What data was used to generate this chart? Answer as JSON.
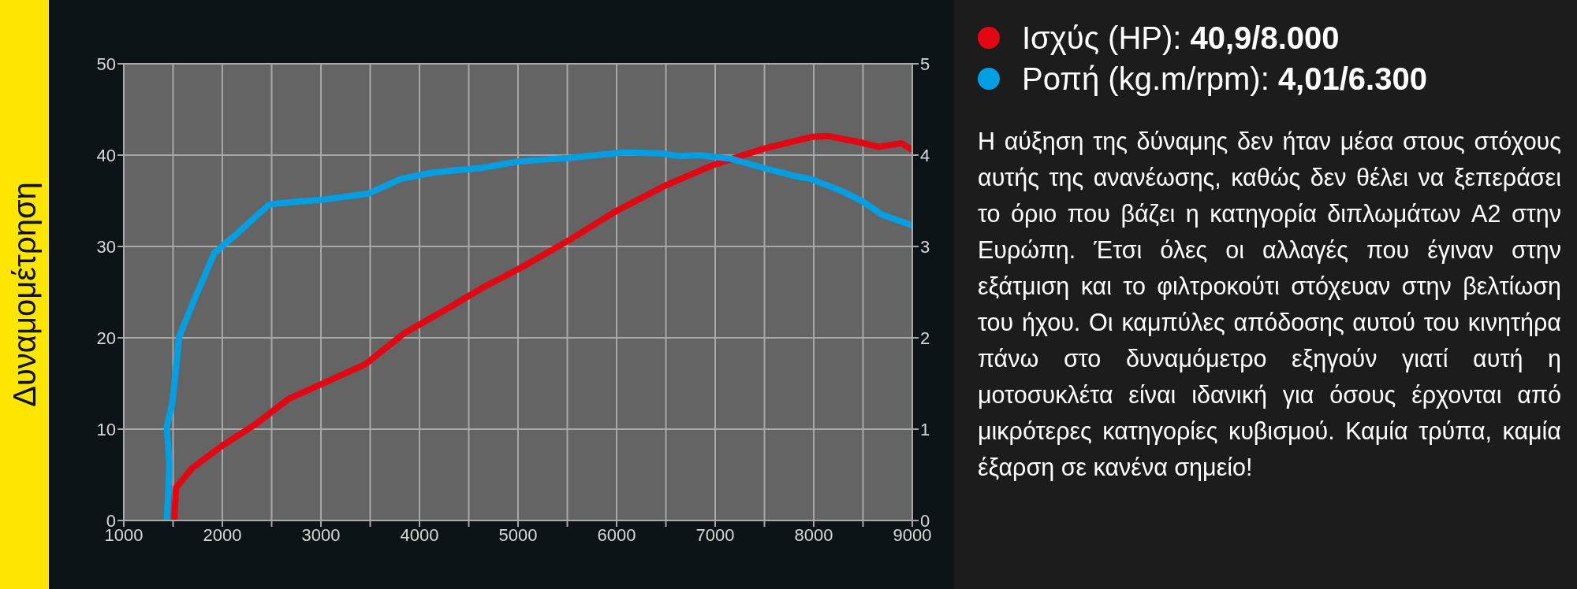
{
  "chart_data": {
    "type": "line",
    "title": "Δυναμομέτρηση",
    "xlim": [
      1000,
      9000
    ],
    "xticks": [
      1000,
      {
        "value": 1500,
        "label": null
      },
      2000,
      {
        "value": 2500,
        "label": null
      },
      3000,
      {
        "value": 3500,
        "label": null
      },
      4000,
      {
        "value": 4500,
        "label": null
      },
      5000,
      {
        "value": 5500,
        "label": null
      },
      6000,
      {
        "value": 6500,
        "label": null
      },
      7000,
      {
        "value": 7500,
        "label": null
      },
      8000,
      {
        "value": 8500,
        "label": null
      },
      9000
    ],
    "ylim": [
      0,
      50
    ],
    "yticks": [
      0,
      10,
      20,
      30,
      40,
      50
    ],
    "y2lim": [
      0,
      5
    ],
    "y2ticks": [
      0,
      1,
      2,
      3,
      4,
      5
    ],
    "grid": true,
    "legend": "right",
    "marker": "none",
    "line_style": "solid",
    "series": [
      {
        "name": "Ισχύς (HP): 40,9/8.000",
        "color": "#e30613",
        "x": [
          1512,
          1530,
          1690,
          2000,
          2345,
          2670,
          3000,
          3450,
          3845,
          4300,
          4660,
          5000,
          5520,
          6000,
          6500,
          7000,
          7490,
          7980,
          8140,
          8470,
          8660,
          8890,
          9000
        ],
        "values": [
          0,
          3.6,
          5.7,
          8.2,
          10.6,
          13.3,
          14.9,
          17.1,
          20.5,
          23.3,
          25.6,
          27.5,
          30.7,
          33.9,
          36.7,
          39.0,
          40.7,
          42.0,
          42.1,
          41.4,
          40.9,
          41.3,
          40.6
        ]
      },
      {
        "name": "Ροπή (kg.m/rpm): 4,01/6.300",
        "color": "#009fe3",
        "axis": "y2",
        "x": [
          1437,
          1463,
          1437,
          1496,
          1561,
          1724,
          1920,
          2116,
          2475,
          2736,
          3000,
          3486,
          3812,
          4139,
          4628,
          5000,
          5520,
          6075,
          6440,
          6630,
          6830,
          7160,
          7490,
          7810,
          7970,
          8300,
          8500,
          8690,
          9000
        ],
        "values": [
          0,
          0.61,
          1.03,
          1.31,
          2.01,
          2.44,
          2.93,
          3.11,
          3.46,
          3.49,
          3.51,
          3.58,
          3.74,
          3.81,
          3.86,
          3.93,
          3.97,
          4.03,
          4.02,
          3.99,
          4.0,
          3.96,
          3.86,
          3.77,
          3.74,
          3.6,
          3.49,
          3.35,
          3.23
        ]
      }
    ],
    "annotations": [
      "Η αύξηση της δύναμης δεν ήταν μέσα στους στόχους αυτής της ανανέωσης, καθώς δεν θέλει να ξεπεράσει το όριο που βάζει η κατηγορία διπλωμάτων A2 στην Ευρώπη. Έτσι όλες οι αλλαγές που έγιναν στην εξάτμιση και το φιλτροκούτι στόχευαν στην βελτίωση του ήχου. Οι καμπύλες απόδοσης αυτού του κινητήρα πάνω στο δυναμόμετρο εξηγούν γιατί αυτή η μοτοσυκλέτα είναι ιδανική για όσους έρχονται από μικρότερες κατηγορίες κυβισμού. Καμία τρύπα, καμία έξαρση σε κανένα σημείο!"
    ]
  }
}
